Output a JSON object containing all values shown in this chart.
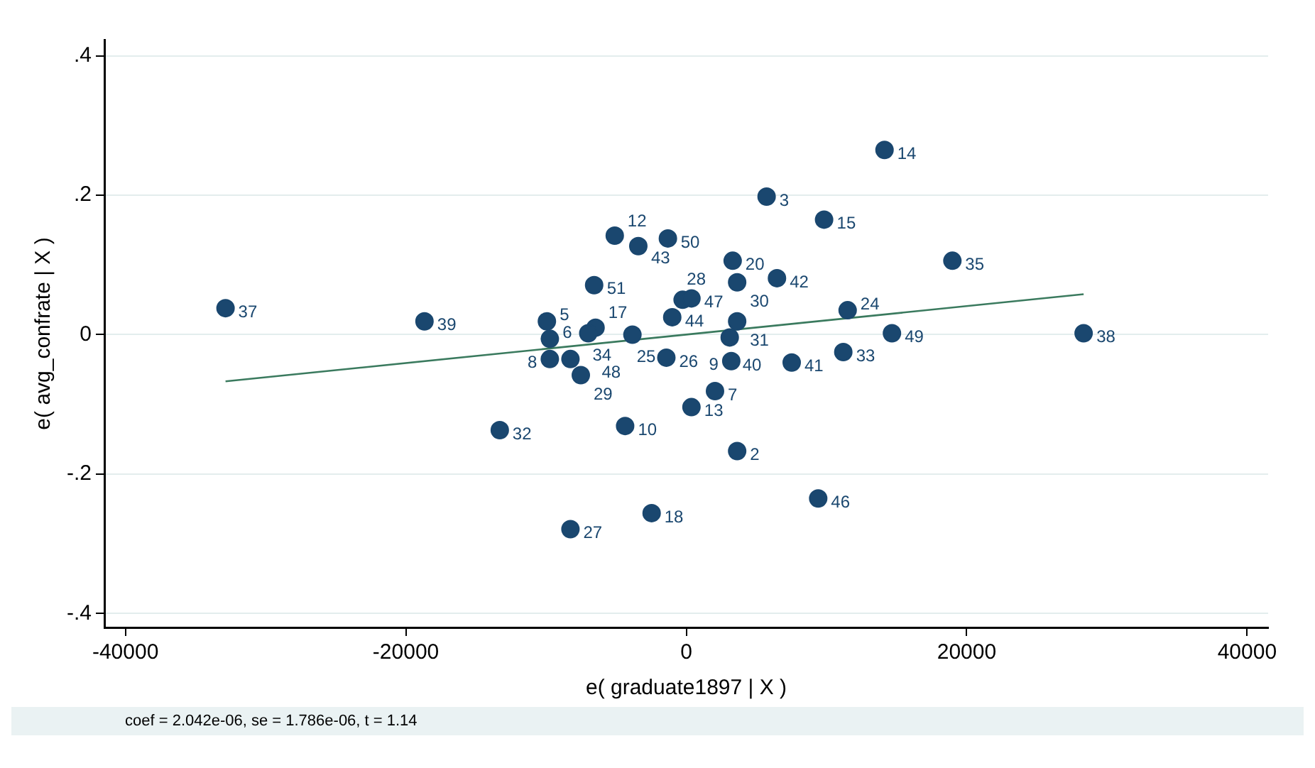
{
  "chart_data": {
    "type": "scatter",
    "xlabel": "e( graduate1897 | X )",
    "ylabel": "e( avg_confrate | X )",
    "xlim": [
      -41500,
      41500
    ],
    "ylim": [
      -0.42,
      0.423
    ],
    "xticks": [
      -40000,
      -20000,
      0,
      20000,
      40000
    ],
    "yticks": [
      {
        "value": -0.4,
        "label": "-.4"
      },
      {
        "value": -0.2,
        "label": "-.2"
      },
      {
        "value": 0,
        "label": "0"
      },
      {
        "value": 0.2,
        "label": ".2"
      },
      {
        "value": 0.4,
        "label": ".4"
      }
    ],
    "grid": "y",
    "legend": false,
    "marker": "circle",
    "series": [
      {
        "color": "#1a476f",
        "x": [
          14140,
          5730,
          9830,
          18980,
          -5100,
          -1310,
          -3420,
          3310,
          6470,
          3630,
          -6570,
          11510,
          -32860,
          -18670,
          28340,
          14670,
          -9940,
          3630,
          -1000,
          -260,
          370,
          -6470,
          -6990,
          -3840,
          3100,
          -9730,
          -9730,
          -8260,
          -7520,
          -1420,
          3210,
          7520,
          11200,
          2050,
          370,
          -4360,
          -13300,
          3630,
          9410,
          -2470,
          -8260
        ],
        "values": [
          0.265,
          0.198,
          0.165,
          0.106,
          0.142,
          0.138,
          0.127,
          0.106,
          0.081,
          0.075,
          0.071,
          0.035,
          0.038,
          0.019,
          0.002,
          0.002,
          0.019,
          0.019,
          0.025,
          0.05,
          0.052,
          0.01,
          0.002,
          0.0,
          -0.004,
          -0.006,
          -0.035,
          -0.035,
          -0.058,
          -0.033,
          -0.038,
          -0.04,
          -0.025,
          -0.081,
          -0.104,
          -0.131,
          -0.137,
          -0.167,
          -0.235,
          -0.256,
          -0.279
        ]
      },
      {
        "type": "line",
        "color": "#3a7a5e",
        "marker": "none",
        "line_style": "solid",
        "x": [
          -32860,
          28340
        ],
        "values": [
          -0.067,
          0.058
        ]
      }
    ],
    "annotations": [
      {
        "text": "14",
        "x": 14140,
        "y": 0.265
      },
      {
        "text": "3",
        "x": 5730,
        "y": 0.198
      },
      {
        "text": "15",
        "x": 9830,
        "y": 0.165
      },
      {
        "text": "35",
        "x": 18980,
        "y": 0.106
      },
      {
        "text": "12",
        "x": -5100,
        "y": 0.142
      },
      {
        "text": "50",
        "x": -1310,
        "y": 0.138
      },
      {
        "text": "43",
        "x": -3420,
        "y": 0.127
      },
      {
        "text": "20",
        "x": 3310,
        "y": 0.106
      },
      {
        "text": "42",
        "x": 6470,
        "y": 0.081
      },
      {
        "text": "30",
        "x": 3630,
        "y": 0.075
      },
      {
        "text": "51",
        "x": -6570,
        "y": 0.071
      },
      {
        "text": "24",
        "x": 11510,
        "y": 0.035
      },
      {
        "text": "37",
        "x": -32860,
        "y": 0.038
      },
      {
        "text": "39",
        "x": -18670,
        "y": 0.019
      },
      {
        "text": "38",
        "x": 28340,
        "y": 0.002
      },
      {
        "text": "49",
        "x": 14670,
        "y": 0.002
      },
      {
        "text": "5",
        "x": -9940,
        "y": 0.019
      },
      {
        "text": "31",
        "x": 3630,
        "y": 0.019
      },
      {
        "text": "44",
        "x": -1000,
        "y": 0.025
      },
      {
        "text": "28",
        "x": -260,
        "y": 0.05
      },
      {
        "text": "47",
        "x": 370,
        "y": 0.052
      },
      {
        "text": "17",
        "x": -6470,
        "y": 0.01
      },
      {
        "text": "34",
        "x": -6990,
        "y": 0.002
      },
      {
        "text": "25",
        "x": -3840,
        "y": 0.0
      },
      {
        "text": "40",
        "x": 3100,
        "y": -0.004
      },
      {
        "text": "6",
        "x": -9730,
        "y": -0.006
      },
      {
        "text": "8",
        "x": -9730,
        "y": -0.035
      },
      {
        "text": "48",
        "x": -8260,
        "y": -0.035
      },
      {
        "text": "29",
        "x": -7520,
        "y": -0.058
      },
      {
        "text": "26",
        "x": -1420,
        "y": -0.033
      },
      {
        "text": "9",
        "x": 3210,
        "y": -0.038
      },
      {
        "text": "41",
        "x": 7520,
        "y": -0.04
      },
      {
        "text": "33",
        "x": 11200,
        "y": -0.025
      },
      {
        "text": "7",
        "x": 2050,
        "y": -0.081
      },
      {
        "text": "13",
        "x": 370,
        "y": -0.104
      },
      {
        "text": "10",
        "x": -4360,
        "y": -0.131
      },
      {
        "text": "32",
        "x": -13300,
        "y": -0.137
      },
      {
        "text": "2",
        "x": 3630,
        "y": -0.167
      },
      {
        "text": "46",
        "x": 9410,
        "y": -0.235
      },
      {
        "text": "18",
        "x": -2470,
        "y": -0.256
      },
      {
        "text": "27",
        "x": -8260,
        "y": -0.279
      },
      "coef = 2.042e-06, se = 1.786e-06, t = 1.14"
    ]
  }
}
